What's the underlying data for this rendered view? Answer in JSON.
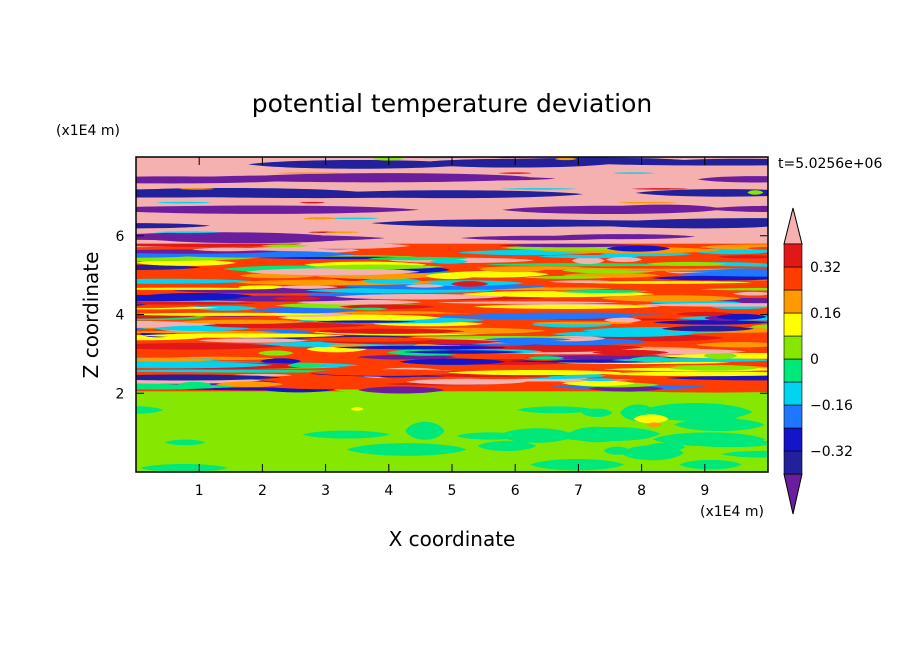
{
  "chart_data": {
    "type": "heatmap",
    "title": "potential temperature deviation",
    "xlabel": "X coordinate",
    "ylabel": "Z coordinate",
    "x_unit": "(x1E4 m)",
    "y_unit": "(x1E4 m)",
    "time_label": "t=5.0256e+06",
    "xlim": [
      0,
      10
    ],
    "ylim": [
      0,
      8
    ],
    "x_ticks": [
      1,
      2,
      3,
      4,
      5,
      6,
      7,
      8,
      9
    ],
    "y_ticks": [
      2,
      4,
      6
    ],
    "colorbar": {
      "levels": [
        -0.4,
        -0.32,
        -0.24,
        -0.16,
        -0.08,
        0,
        0.08,
        0.16,
        0.24,
        0.32,
        0.4
      ],
      "tick_values": [
        "0.32",
        "0.16",
        "0",
        "−0.16",
        "−0.32"
      ],
      "colors": [
        "#6a1e9e",
        "#22209a",
        "#1414c8",
        "#1e78ff",
        "#00d4f0",
        "#00e87a",
        "#86e800",
        "#ffff00",
        "#ff9900",
        "#ff3d00",
        "#e01818",
        "#f5b0b0"
      ],
      "extend": "both"
    },
    "regions": [
      {
        "z_range": [
          0,
          2.05
        ],
        "description": "lower layer dominated by values 0 to 0.08 with patches of -0.08 to 0"
      },
      {
        "z_range": [
          2.05,
          5.8
        ],
        "description": "multicolor turbulent layered bands spanning the full range"
      },
      {
        "z_range": [
          5.8,
          8
        ],
        "description": "alternating bands above 0.4 and below -0.4"
      }
    ]
  }
}
